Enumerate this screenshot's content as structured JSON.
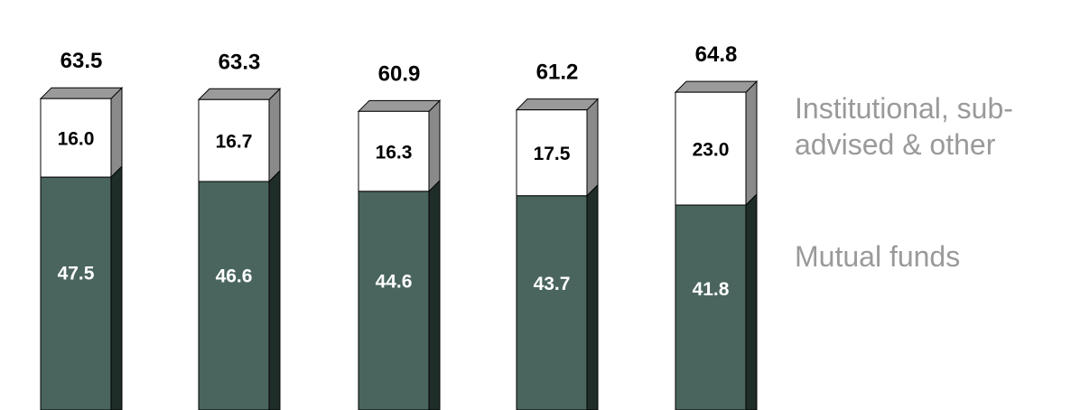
{
  "chart_data": {
    "type": "bar",
    "stacked": true,
    "title": "",
    "xlabel": "",
    "ylabel": "",
    "categories": [
      "",
      "",
      "",
      "",
      ""
    ],
    "series": [
      {
        "name": "Mutual funds",
        "values": [
          47.5,
          46.6,
          44.6,
          43.7,
          41.8
        ],
        "color": "#4a655e"
      },
      {
        "name": "Institutional, sub-advised & other",
        "values": [
          16.0,
          16.7,
          16.3,
          17.5,
          23.0
        ],
        "color": "#ffffff"
      }
    ],
    "totals": [
      "63.5",
      "63.3",
      "60.9",
      "61.2",
      "64.8"
    ],
    "segment_labels": {
      "mutual": [
        "47.5",
        "46.6",
        "44.6",
        "43.7",
        "41.8"
      ],
      "institutional": [
        "16.0",
        "16.7",
        "16.3",
        "17.5",
        "23.0"
      ]
    },
    "legend_placement": "right",
    "grid": false,
    "style": "3d-columns",
    "colors": {
      "mutual_front": "#4a655e",
      "mutual_side": "#1f2d29",
      "top_face": "#9a9a9a",
      "inst_side": "#8a8a8a"
    }
  },
  "legend": {
    "institutional": "Institutional, sub-advised & other",
    "mutual": "Mutual funds"
  }
}
